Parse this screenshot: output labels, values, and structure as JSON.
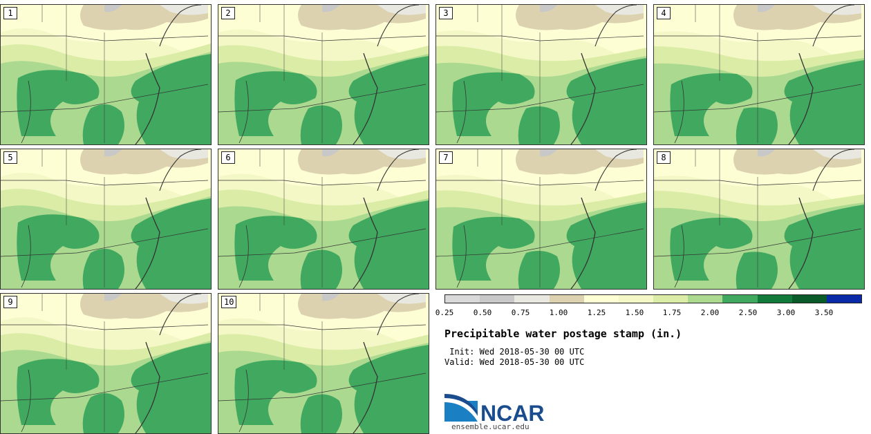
{
  "colors": {
    "c025": "#d9d9d9",
    "c050": "#c8c8c8",
    "c075": "#e8e8e0",
    "c100": "#dcd2b0",
    "c125": "#fefed4",
    "c150": "#f4f8c6",
    "c175": "#dbeca6",
    "c200": "#aad98f",
    "c250": "#41a85f",
    "c300": "#127a3a",
    "c350": "#0a5a2a",
    "c400": "#0a2aa8"
  },
  "panels": [
    {
      "label": "1"
    },
    {
      "label": "2"
    },
    {
      "label": "3"
    },
    {
      "label": "4"
    },
    {
      "label": "5"
    },
    {
      "label": "6"
    },
    {
      "label": "7"
    },
    {
      "label": "8"
    },
    {
      "label": "9"
    },
    {
      "label": "10"
    }
  ],
  "legend": {
    "ticks": [
      "0.25",
      "0.50",
      "0.75",
      "1.00",
      "1.25",
      "1.50",
      "1.75",
      "2.00",
      "2.50",
      "3.00",
      "3.50"
    ],
    "swatches": [
      "c025",
      "c050",
      "c075",
      "c100",
      "c125",
      "c150",
      "c175",
      "c200",
      "c250",
      "c300",
      "c350",
      "c400"
    ]
  },
  "title": "Precipitable water postage stamp (in.)",
  "init_line": " Init: Wed 2018-05-30 00 UTC",
  "valid_line": "Valid: Wed 2018-05-30 00 UTC",
  "logo_text": "NCAR",
  "url": "ensemble.ucar.edu"
}
